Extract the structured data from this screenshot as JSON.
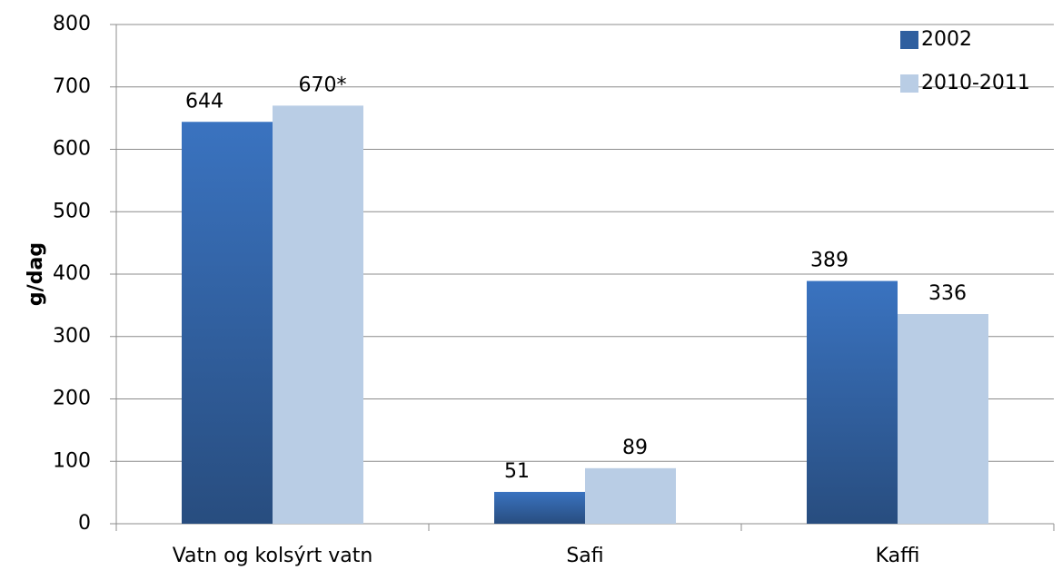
{
  "chart_data": {
    "type": "bar",
    "ylabel": "g/dag",
    "categories": [
      "Vatn og kolsýrt vatn",
      "Safi",
      "Kaffi"
    ],
    "series": [
      {
        "name": "2002",
        "color": "#2f5f9f",
        "values": [
          644,
          51,
          389
        ]
      },
      {
        "name": "2010-2011",
        "color": "#b9cde5",
        "values": [
          670,
          89,
          336
        ],
        "value_labels": [
          "670*",
          "89",
          "336"
        ]
      }
    ],
    "ylim": [
      0,
      800
    ],
    "yticks": [
      0,
      100,
      200,
      300,
      400,
      500,
      600,
      700,
      800
    ],
    "grid": true,
    "legend": "top-right"
  }
}
